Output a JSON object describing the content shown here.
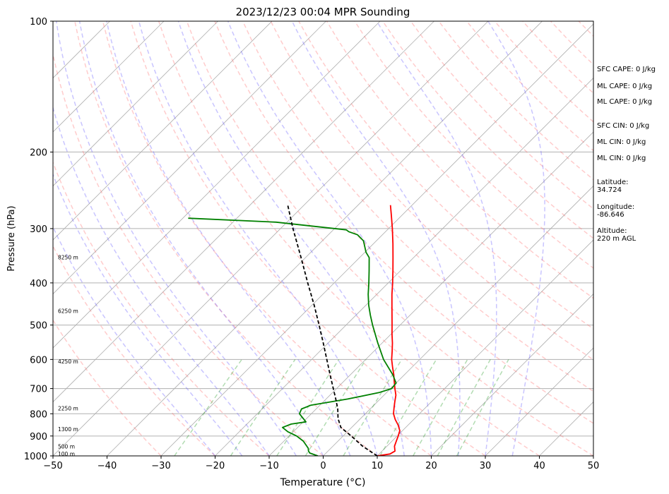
{
  "chart_data": {
    "type": "line",
    "chart_kind": "skew-T log-p sounding",
    "title": "2023/12/23 00:04 MPR Sounding",
    "xlabel": "Temperature (°C)",
    "ylabel": "Pressure (hPa)",
    "xlim": [
      -50,
      50
    ],
    "ylim": [
      1000,
      100
    ],
    "y_scale": "log",
    "x_ticks": [
      "−50",
      "−40",
      "−30",
      "−20",
      "−10",
      "0",
      "10",
      "20",
      "30",
      "40",
      "50"
    ],
    "y_ticks": [
      "100",
      "200",
      "300",
      "400",
      "500",
      "600",
      "700",
      "800",
      "900",
      "1000"
    ],
    "x_tick_values": [
      -50,
      -40,
      -30,
      -20,
      -10,
      0,
      10,
      20,
      30,
      40,
      50
    ],
    "y_tick_values": [
      100,
      200,
      300,
      400,
      500,
      600,
      700,
      800,
      900,
      1000
    ],
    "grid": true,
    "height_labels": [
      {
        "text": "100 m",
        "p": 988
      },
      {
        "text": "500 m",
        "p": 950
      },
      {
        "text": "1300 m",
        "p": 867
      },
      {
        "text": "2250 m",
        "p": 777
      },
      {
        "text": "4250 m",
        "p": 606
      },
      {
        "text": "6250 m",
        "p": 464
      },
      {
        "text": "8250 m",
        "p": 349
      }
    ],
    "series": [
      {
        "role": "temperature",
        "color": "#ff0000",
        "points": [
          [
            1000,
            10.0
          ],
          [
            990,
            12.0
          ],
          [
            975,
            12.4
          ],
          [
            950,
            11.4
          ],
          [
            925,
            10.8
          ],
          [
            900,
            10.2
          ],
          [
            875,
            9.5
          ],
          [
            850,
            8.2
          ],
          [
            825,
            6.6
          ],
          [
            800,
            5.2
          ],
          [
            775,
            4.2
          ],
          [
            750,
            3.2
          ],
          [
            725,
            2.2
          ],
          [
            700,
            0.8
          ],
          [
            675,
            -0.6
          ],
          [
            650,
            -2.0
          ],
          [
            625,
            -3.6
          ],
          [
            600,
            -5.2
          ],
          [
            575,
            -6.6
          ],
          [
            550,
            -8.1
          ],
          [
            525,
            -9.8
          ],
          [
            500,
            -11.5
          ],
          [
            475,
            -13.3
          ],
          [
            450,
            -15.2
          ],
          [
            425,
            -17.2
          ],
          [
            400,
            -19.2
          ],
          [
            375,
            -21.4
          ],
          [
            350,
            -23.8
          ],
          [
            325,
            -26.4
          ],
          [
            300,
            -29.3
          ],
          [
            280,
            -31.9
          ],
          [
            265,
            -34.0
          ]
        ]
      },
      {
        "role": "dewpoint",
        "color": "#008000",
        "points": [
          [
            1000,
            -1.0
          ],
          [
            985,
            -3.0
          ],
          [
            975,
            -3.6
          ],
          [
            960,
            -4.2
          ],
          [
            925,
            -6.4
          ],
          [
            900,
            -8.6
          ],
          [
            880,
            -11.0
          ],
          [
            860,
            -12.8
          ],
          [
            845,
            -11.8
          ],
          [
            835,
            -9.5
          ],
          [
            800,
            -12.2
          ],
          [
            780,
            -12.7
          ],
          [
            765,
            -11.7
          ],
          [
            740,
            -6.0
          ],
          [
            715,
            -1.4
          ],
          [
            700,
            0.2
          ],
          [
            680,
            0.0
          ],
          [
            650,
            -2.2
          ],
          [
            600,
            -6.7
          ],
          [
            550,
            -10.8
          ],
          [
            500,
            -15.1
          ],
          [
            475,
            -17.3
          ],
          [
            450,
            -19.5
          ],
          [
            425,
            -21.6
          ],
          [
            400,
            -23.6
          ],
          [
            375,
            -25.8
          ],
          [
            350,
            -28.2
          ],
          [
            340,
            -29.8
          ],
          [
            320,
            -32.4
          ],
          [
            310,
            -34.6
          ],
          [
            305,
            -36.8
          ],
          [
            302,
            -37.6
          ],
          [
            290,
            -52.0
          ],
          [
            284,
            -69.0
          ]
        ]
      },
      {
        "role": "parcel",
        "color": "#000000",
        "dashed": true,
        "points": [
          [
            1000,
            10.0
          ],
          [
            950,
            5.5
          ],
          [
            900,
            1.5
          ],
          [
            860,
            -2.0
          ],
          [
            820,
            -4.2
          ],
          [
            780,
            -6.0
          ],
          [
            740,
            -8.2
          ],
          [
            700,
            -10.6
          ],
          [
            650,
            -13.8
          ],
          [
            600,
            -17.2
          ],
          [
            550,
            -20.9
          ],
          [
            500,
            -25.0
          ],
          [
            450,
            -29.6
          ],
          [
            400,
            -34.9
          ],
          [
            350,
            -40.8
          ],
          [
            300,
            -47.7
          ],
          [
            265,
            -53.0
          ]
        ]
      }
    ],
    "background_lines": {
      "isotherms_degC": [
        -120,
        -110,
        -100,
        -90,
        -80,
        -70,
        -60,
        -50,
        -40,
        -30,
        -20,
        -10,
        0,
        10,
        20,
        30,
        40,
        50
      ],
      "dry_adiabats_degC": [
        -30,
        -20,
        -10,
        0,
        10,
        20,
        30,
        40,
        50,
        60,
        70,
        80,
        90,
        100,
        110,
        120,
        130,
        140,
        150,
        160,
        170,
        180,
        190,
        200
      ],
      "moist_adiabats_degC": [
        -20,
        -15,
        -10,
        -5,
        0,
        5,
        10,
        15,
        20,
        25,
        30,
        35
      ],
      "mixing_ratios_gkg": [
        0.4,
        1,
        2,
        3,
        5,
        8,
        12,
        16,
        20
      ]
    }
  },
  "side_panel": [
    {
      "label": "SFC CAPE: 0 J/kg"
    },
    {
      "label": "ML CAPE: 0 J/kg"
    },
    {
      "label": "ML CAPE: 0 J/kg"
    },
    {
      "label": "SFC CIN: 0 J/kg"
    },
    {
      "label": "ML CIN: 0 J/kg"
    },
    {
      "label": "ML CIN: 0 J/kg"
    },
    {
      "label": "Latitude:\n34.724"
    },
    {
      "label": "Longitude:\n-86.646"
    },
    {
      "label": "Altitude:\n220 m AGL"
    }
  ]
}
